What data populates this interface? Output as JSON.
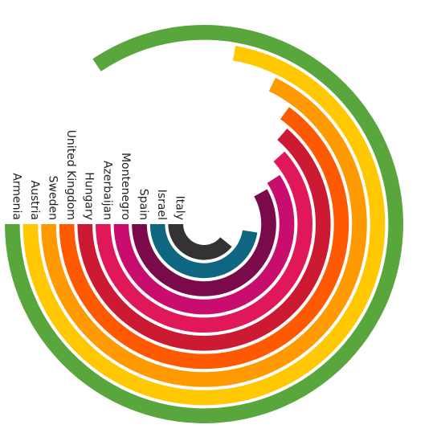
{
  "chart_data": {
    "type": "radial-bar",
    "title": "",
    "categories": [
      "Italy",
      "Israel",
      "Spain",
      "Montenegro",
      "Azerbaijan",
      "Hungary",
      "United Kingdom",
      "Sweden",
      "Austria",
      "Armenia"
    ],
    "values": [
      141,
      171,
      209,
      213,
      222,
      229,
      234,
      244,
      260,
      304
    ],
    "max": 360,
    "start_angle_deg": 270,
    "direction": "counterclockwise",
    "colors": [
      "#333333",
      "#0e6680",
      "#7a0a4a",
      "#c80d6e",
      "#e0185a",
      "#cc1a33",
      "#ff5a00",
      "#ff9a00",
      "#ffc800",
      "#59a63c"
    ],
    "legend": "none",
    "grid": false
  }
}
